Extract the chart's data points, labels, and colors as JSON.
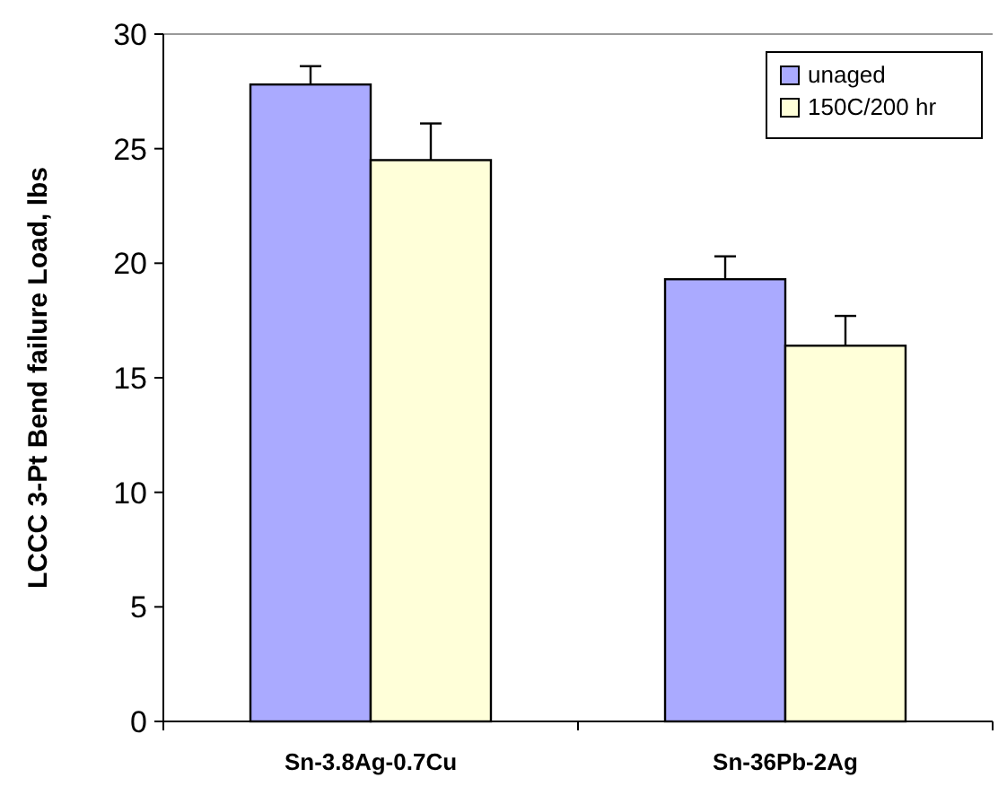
{
  "chart_data": {
    "type": "bar",
    "ylabel": "LCCC 3-Pt Bend failure Load, lbs",
    "categories": [
      "Sn-3.8Ag-0.7Cu",
      "Sn-36Pb-2Ag"
    ],
    "series": [
      {
        "name": "unaged",
        "color": "#aaaaff",
        "values": [
          27.8,
          19.3
        ],
        "errors": [
          [
            27.8,
            28.6
          ],
          [
            19.3,
            20.3
          ]
        ]
      },
      {
        "name": "150C/200 hr",
        "color": "#ffffd9",
        "values": [
          24.5,
          16.4
        ],
        "errors": [
          [
            24.5,
            26.1
          ],
          [
            16.4,
            17.7
          ]
        ]
      }
    ],
    "ylim": [
      0,
      30
    ],
    "yticks": [
      0,
      5,
      10,
      15,
      20,
      25,
      30
    ],
    "legend": "top right"
  }
}
